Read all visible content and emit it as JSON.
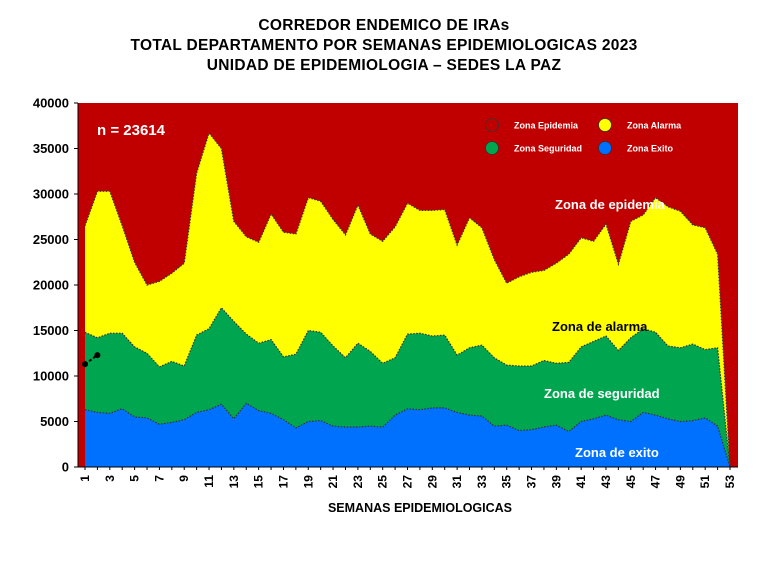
{
  "header": {
    "title_line1": "CORREDOR ENDEMICO DE IRAs",
    "title_line2": "TOTAL DEPARTAMENTO POR SEMANAS EPIDEMIOLOGICAS 2023",
    "title_line3": "UNIDAD DE EPIDEMIOLOGIA – SEDES LA PAZ"
  },
  "chart_data": {
    "type": "area",
    "xlabel": "SEMANAS EPIDEMIOLOGICAS",
    "ylabel": "",
    "ylim": [
      0,
      40000
    ],
    "xlim": [
      1,
      53
    ],
    "y_ticks": [
      "0",
      "5000",
      "10000",
      "15000",
      "20000",
      "25000",
      "30000",
      "35000",
      "40000"
    ],
    "x_ticks": [
      "1",
      "3",
      "5",
      "7",
      "9",
      "11",
      "13",
      "15",
      "17",
      "19",
      "21",
      "23",
      "25",
      "27",
      "29",
      "31",
      "33",
      "35",
      "37",
      "39",
      "41",
      "43",
      "45",
      "47",
      "49",
      "51",
      "53"
    ],
    "n_label": "n =  23614",
    "legend": [
      {
        "label": "Zona Epidemia",
        "color": "#c00000"
      },
      {
        "label": "Zona Alarma",
        "color": "#ffff00"
      },
      {
        "label": "Zona Seguridad",
        "color": "#00a550"
      },
      {
        "label": "Zona Exito",
        "color": "#0070ff"
      }
    ],
    "legend_position": "top-right",
    "zone_labels": {
      "epidemia": "Zona de epidemia",
      "alarma": "Zona de alarma",
      "seguridad": "Zona de  seguridad",
      "exito": "Zona de exito"
    },
    "weeks": [
      1,
      2,
      3,
      4,
      5,
      6,
      7,
      8,
      9,
      10,
      11,
      12,
      13,
      14,
      15,
      16,
      17,
      18,
      19,
      20,
      21,
      22,
      23,
      24,
      25,
      26,
      27,
      28,
      29,
      30,
      31,
      32,
      33,
      34,
      35,
      36,
      37,
      38,
      39,
      40,
      41,
      42,
      43,
      44,
      45,
      46,
      47,
      48,
      49,
      50,
      51,
      52,
      53
    ],
    "series": [
      {
        "name": "Zona Exito",
        "color": "#0070ff",
        "values": [
          6300,
          6000,
          5900,
          6400,
          5500,
          5400,
          4700,
          4900,
          5200,
          6000,
          6300,
          6900,
          5300,
          7000,
          6200,
          5900,
          5200,
          4300,
          5000,
          5100,
          4500,
          4400,
          4400,
          4500,
          4400,
          5700,
          6400,
          6300,
          6500,
          6500,
          6000,
          5700,
          5600,
          4500,
          4600,
          4000,
          4100,
          4400,
          4600,
          3900,
          5000,
          5300,
          5700,
          5200,
          5000,
          6000,
          5700,
          5300,
          5000,
          5100,
          5400,
          4500,
          0
        ]
      },
      {
        "name": "Zona Seguridad",
        "color": "#00a550",
        "values": [
          14800,
          14200,
          14700,
          14700,
          13200,
          12500,
          11000,
          11600,
          11100,
          14500,
          15200,
          17500,
          16000,
          14600,
          13600,
          14000,
          12100,
          12400,
          15000,
          14800,
          13300,
          12000,
          13600,
          12700,
          11400,
          12000,
          14600,
          14700,
          14400,
          14500,
          12300,
          13100,
          13400,
          12000,
          11200,
          11100,
          11100,
          11700,
          11400,
          11500,
          13200,
          13800,
          14400,
          12800,
          14200,
          15200,
          14800,
          13300,
          13100,
          13500,
          12900,
          13100,
          0
        ]
      },
      {
        "name": "Zona Alarma",
        "color": "#ffff00",
        "values": [
          26500,
          30300,
          30300,
          26500,
          22500,
          20000,
          20400,
          21300,
          22400,
          32300,
          36700,
          35000,
          27000,
          25300,
          24700,
          27800,
          25800,
          25600,
          29600,
          29200,
          27200,
          25500,
          28800,
          25600,
          24800,
          26400,
          29000,
          28200,
          28200,
          28300,
          24400,
          27400,
          26300,
          22800,
          20200,
          20900,
          21400,
          21600,
          22400,
          23400,
          25200,
          24800,
          26700,
          22300,
          27000,
          27700,
          29600,
          28600,
          28100,
          26600,
          26300,
          23400,
          0
        ]
      }
    ],
    "observed": {
      "name": "n",
      "x": [
        1,
        2
      ],
      "values": [
        11300,
        12300
      ]
    }
  }
}
